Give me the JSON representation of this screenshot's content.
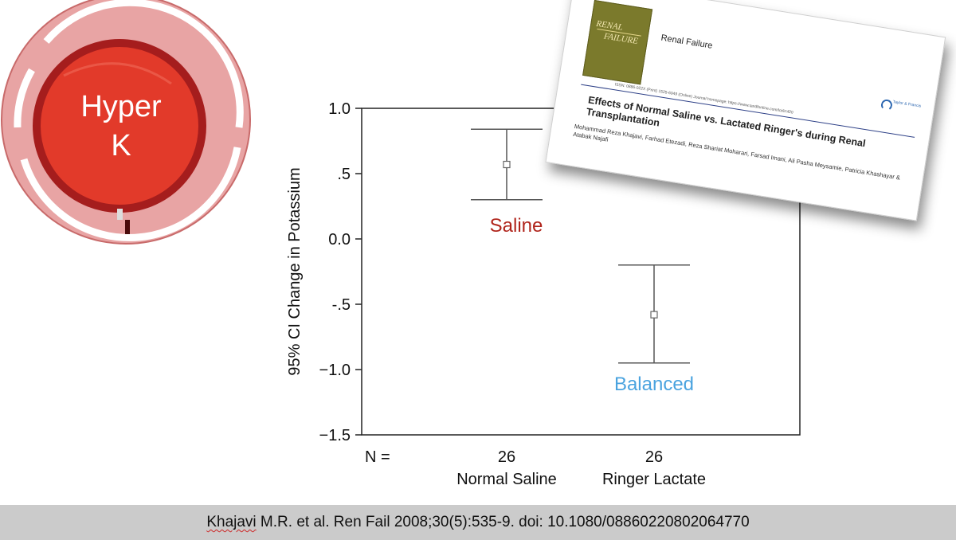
{
  "logo": {
    "line1": "Hyper",
    "line2": "K",
    "colors": {
      "outer_ring": "#e09c9c",
      "inner_disc": "#e23a2a",
      "disc_edge": "#a51d1d"
    }
  },
  "chart_data": {
    "type": "errorbar",
    "ylabel": "95% CI Change in Potassium",
    "ylim": [
      -1.5,
      1.0
    ],
    "yticks": [
      {
        "value": 1.0,
        "label": "1.0"
      },
      {
        "value": 0.5,
        "label": ".5"
      },
      {
        "value": 0.0,
        "label": "0.0"
      },
      {
        "value": -0.5,
        "label": "-.5"
      },
      {
        "value": -1.0,
        "label": "−1.0"
      },
      {
        "value": -1.5,
        "label": "−1.5"
      }
    ],
    "n_label": "N =",
    "groups": [
      {
        "category": "Normal Saline",
        "n": "26",
        "mean": 0.57,
        "lower": 0.3,
        "upper": 0.84,
        "annotation": "Saline",
        "annotation_color": "#b0241b"
      },
      {
        "category": "Ringer Lactate",
        "n": "26",
        "mean": -0.58,
        "lower": -0.95,
        "upper": -0.2,
        "annotation": "Balanced",
        "annotation_color": "#4aa3df"
      }
    ]
  },
  "paper": {
    "journal_cover_line1": "RENAL",
    "journal_cover_line2": "FAILURE",
    "journal_name": "Renal Failure",
    "publisher_logo_text": "Taylor & Francis",
    "issn_line": "ISSN: 0886-022X (Print) 1525-6049 (Online) Journal homepage: https://www.tandfonline.com/loi/irnf20",
    "title": "Effects of Normal Saline vs. Lactated Ringer's during Renal Transplantation",
    "authors": "Mohammad Reza Khajavi, Farhad Etezadi, Reza Shariat Moharari, Farsad Imani, Ali Pasha Meysamie, Patricia Khashayar & Atabak Najafi"
  },
  "citation": {
    "author": "Khajavi",
    "rest": " M.R. et al. Ren Fail 2008;30(5):535-9. doi: 10.1080/08860220802064770"
  }
}
